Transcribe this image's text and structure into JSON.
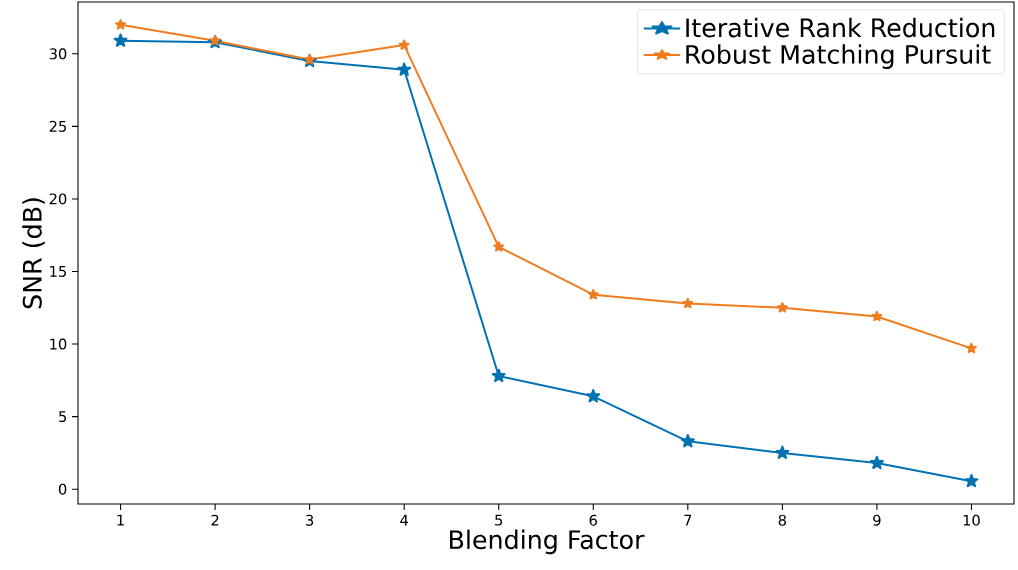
{
  "chart_data": {
    "type": "line",
    "xlabel": "Blending Factor",
    "ylabel": "SNR (dB)",
    "x": [
      1,
      2,
      3,
      4,
      5,
      6,
      7,
      8,
      9,
      10
    ],
    "series": [
      {
        "name": "Iterative Rank Reduction",
        "color": "#0072b2",
        "values": [
          30.9,
          30.8,
          29.5,
          28.9,
          7.8,
          6.4,
          3.3,
          2.5,
          1.8,
          0.55
        ]
      },
      {
        "name": "Robust Matching Pursuit",
        "color": "#f07c1e",
        "values": [
          32.0,
          30.9,
          29.6,
          30.6,
          16.7,
          13.4,
          12.8,
          12.5,
          11.9,
          9.7
        ]
      }
    ],
    "xlim": [
      0.55,
      10.45
    ],
    "ylim": [
      -1.02,
      33.57
    ],
    "xticks": [
      1,
      2,
      3,
      4,
      5,
      6,
      7,
      8,
      9,
      10
    ],
    "yticks": [
      0,
      5,
      10,
      15,
      20,
      25,
      30
    ],
    "grid": false,
    "legend": "top right",
    "marker": "star",
    "line_style": "solid"
  }
}
